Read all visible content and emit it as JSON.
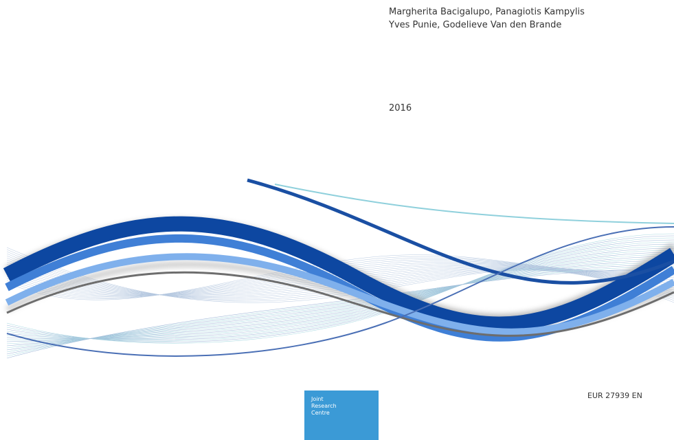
{
  "authors": [
    "Margherita Bacigalupo, Panagiotis Kampylis",
    "Yves Punie, Godelieve Van den Brande"
  ],
  "year": "2016",
  "report_number": "EUR 27939 EN",
  "logo": {
    "lines": [
      "Joint",
      "Research",
      "Centre"
    ]
  }
}
